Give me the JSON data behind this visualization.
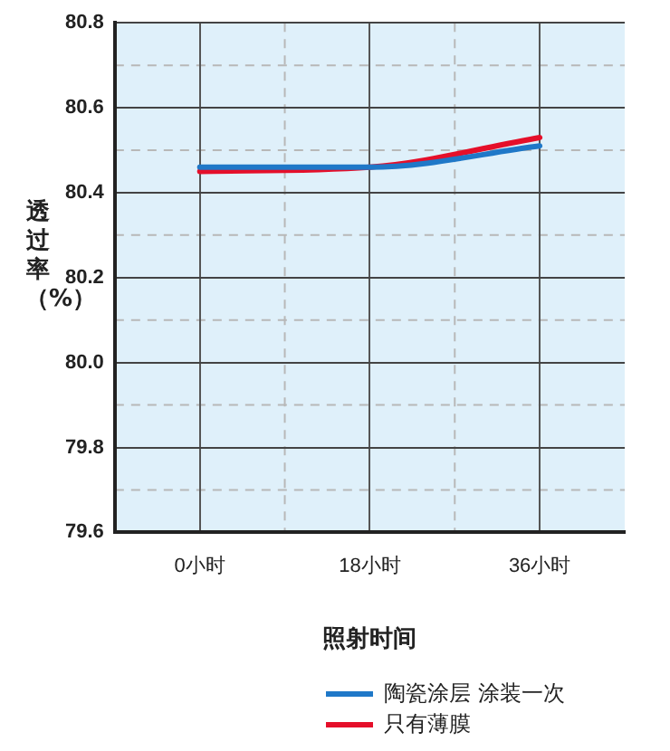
{
  "chart_data": {
    "type": "line",
    "xlabel": "照射时间",
    "ylabel": "透过率（%）",
    "categories": [
      "0小时",
      "18小时",
      "36小时"
    ],
    "series": [
      {
        "name": "陶瓷涂层 涂装一次",
        "color": "#1f78c8",
        "values": [
          80.46,
          80.46,
          80.51
        ]
      },
      {
        "name": "只有薄膜",
        "color": "#e50f2a",
        "values": [
          80.45,
          80.46,
          80.53
        ]
      }
    ],
    "ylim": [
      79.6,
      80.8
    ],
    "yticks": [
      79.6,
      79.8,
      {
        "value": 80,
        "label": "80.0"
      },
      80.2,
      80.4,
      80.6,
      80.8
    ],
    "grid": true,
    "legend": "bottom",
    "marker": "none",
    "line_style": "solid"
  }
}
